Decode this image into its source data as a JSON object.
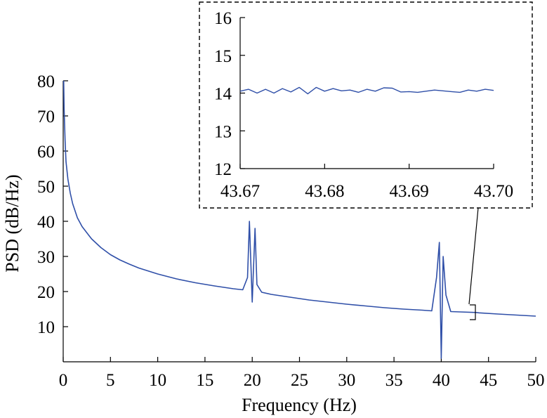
{
  "colors": {
    "series": "#2f4fa8",
    "axis": "#000000",
    "box": "#000000"
  },
  "chart_data": [
    {
      "type": "line",
      "panel": "main",
      "xlabel": "Frequency (Hz)",
      "ylabel": "PSD (dB/Hz)",
      "xlim": [
        0,
        50
      ],
      "ylim": [
        0,
        80
      ],
      "xticks": [
        "0",
        "5",
        "10",
        "15",
        "20",
        "25",
        "30",
        "35",
        "40",
        "45",
        "50"
      ],
      "yticks": [
        "10",
        "20",
        "30",
        "40",
        "50",
        "60",
        "70",
        "80"
      ],
      "grid": false,
      "series": [
        {
          "x": [
            0.05,
            0.1,
            0.2,
            0.3,
            0.5,
            0.75,
            1,
            1.5,
            2,
            3,
            4,
            5,
            6,
            7,
            8,
            10,
            12,
            14,
            16,
            18,
            19,
            19.5,
            19.7,
            20.0,
            20.3,
            20.5,
            21,
            22,
            24,
            26,
            28,
            30,
            32,
            34,
            36,
            38,
            39,
            39.5,
            39.8,
            40.0,
            40.2,
            40.5,
            41,
            42,
            43.685,
            44,
            46,
            48,
            50
          ],
          "y": [
            80,
            72,
            63,
            57,
            52,
            48,
            45,
            41,
            38.5,
            35,
            32.5,
            30.5,
            29,
            27.8,
            26.7,
            25,
            23.6,
            22.5,
            21.6,
            20.8,
            20.5,
            24,
            40,
            17,
            38,
            22,
            19.8,
            19.2,
            18.4,
            17.6,
            17,
            16.4,
            15.9,
            15.4,
            15,
            14.7,
            14.5,
            24,
            34,
            1,
            30,
            19,
            14.3,
            14.2,
            14.05,
            13.95,
            13.6,
            13.3,
            13
          ]
        }
      ]
    },
    {
      "type": "line",
      "panel": "inset",
      "xlim": [
        43.67,
        43.7
      ],
      "ylim": [
        12,
        16
      ],
      "xticks": [
        "43.67",
        "43.68",
        "43.69",
        "43.70"
      ],
      "yticks": [
        "12",
        "13",
        "14",
        "15",
        "16"
      ],
      "grid": false,
      "series": [
        {
          "x": [
            43.67,
            43.671,
            43.672,
            43.673,
            43.674,
            43.675,
            43.676,
            43.677,
            43.678,
            43.679,
            43.68,
            43.681,
            43.682,
            43.683,
            43.684,
            43.685,
            43.686,
            43.687,
            43.688,
            43.689,
            43.69,
            43.691,
            43.692,
            43.693,
            43.694,
            43.695,
            43.696,
            43.697,
            43.698,
            43.699,
            43.7
          ],
          "y": [
            14.05,
            14.1,
            14.0,
            14.1,
            14.0,
            14.12,
            14.03,
            14.15,
            13.98,
            14.15,
            14.05,
            14.12,
            14.06,
            14.08,
            14.02,
            14.1,
            14.05,
            14.14,
            14.13,
            14.03,
            14.04,
            14.02,
            14.05,
            14.08,
            14.06,
            14.04,
            14.02,
            14.08,
            14.05,
            14.1,
            14.07
          ]
        }
      ]
    }
  ]
}
